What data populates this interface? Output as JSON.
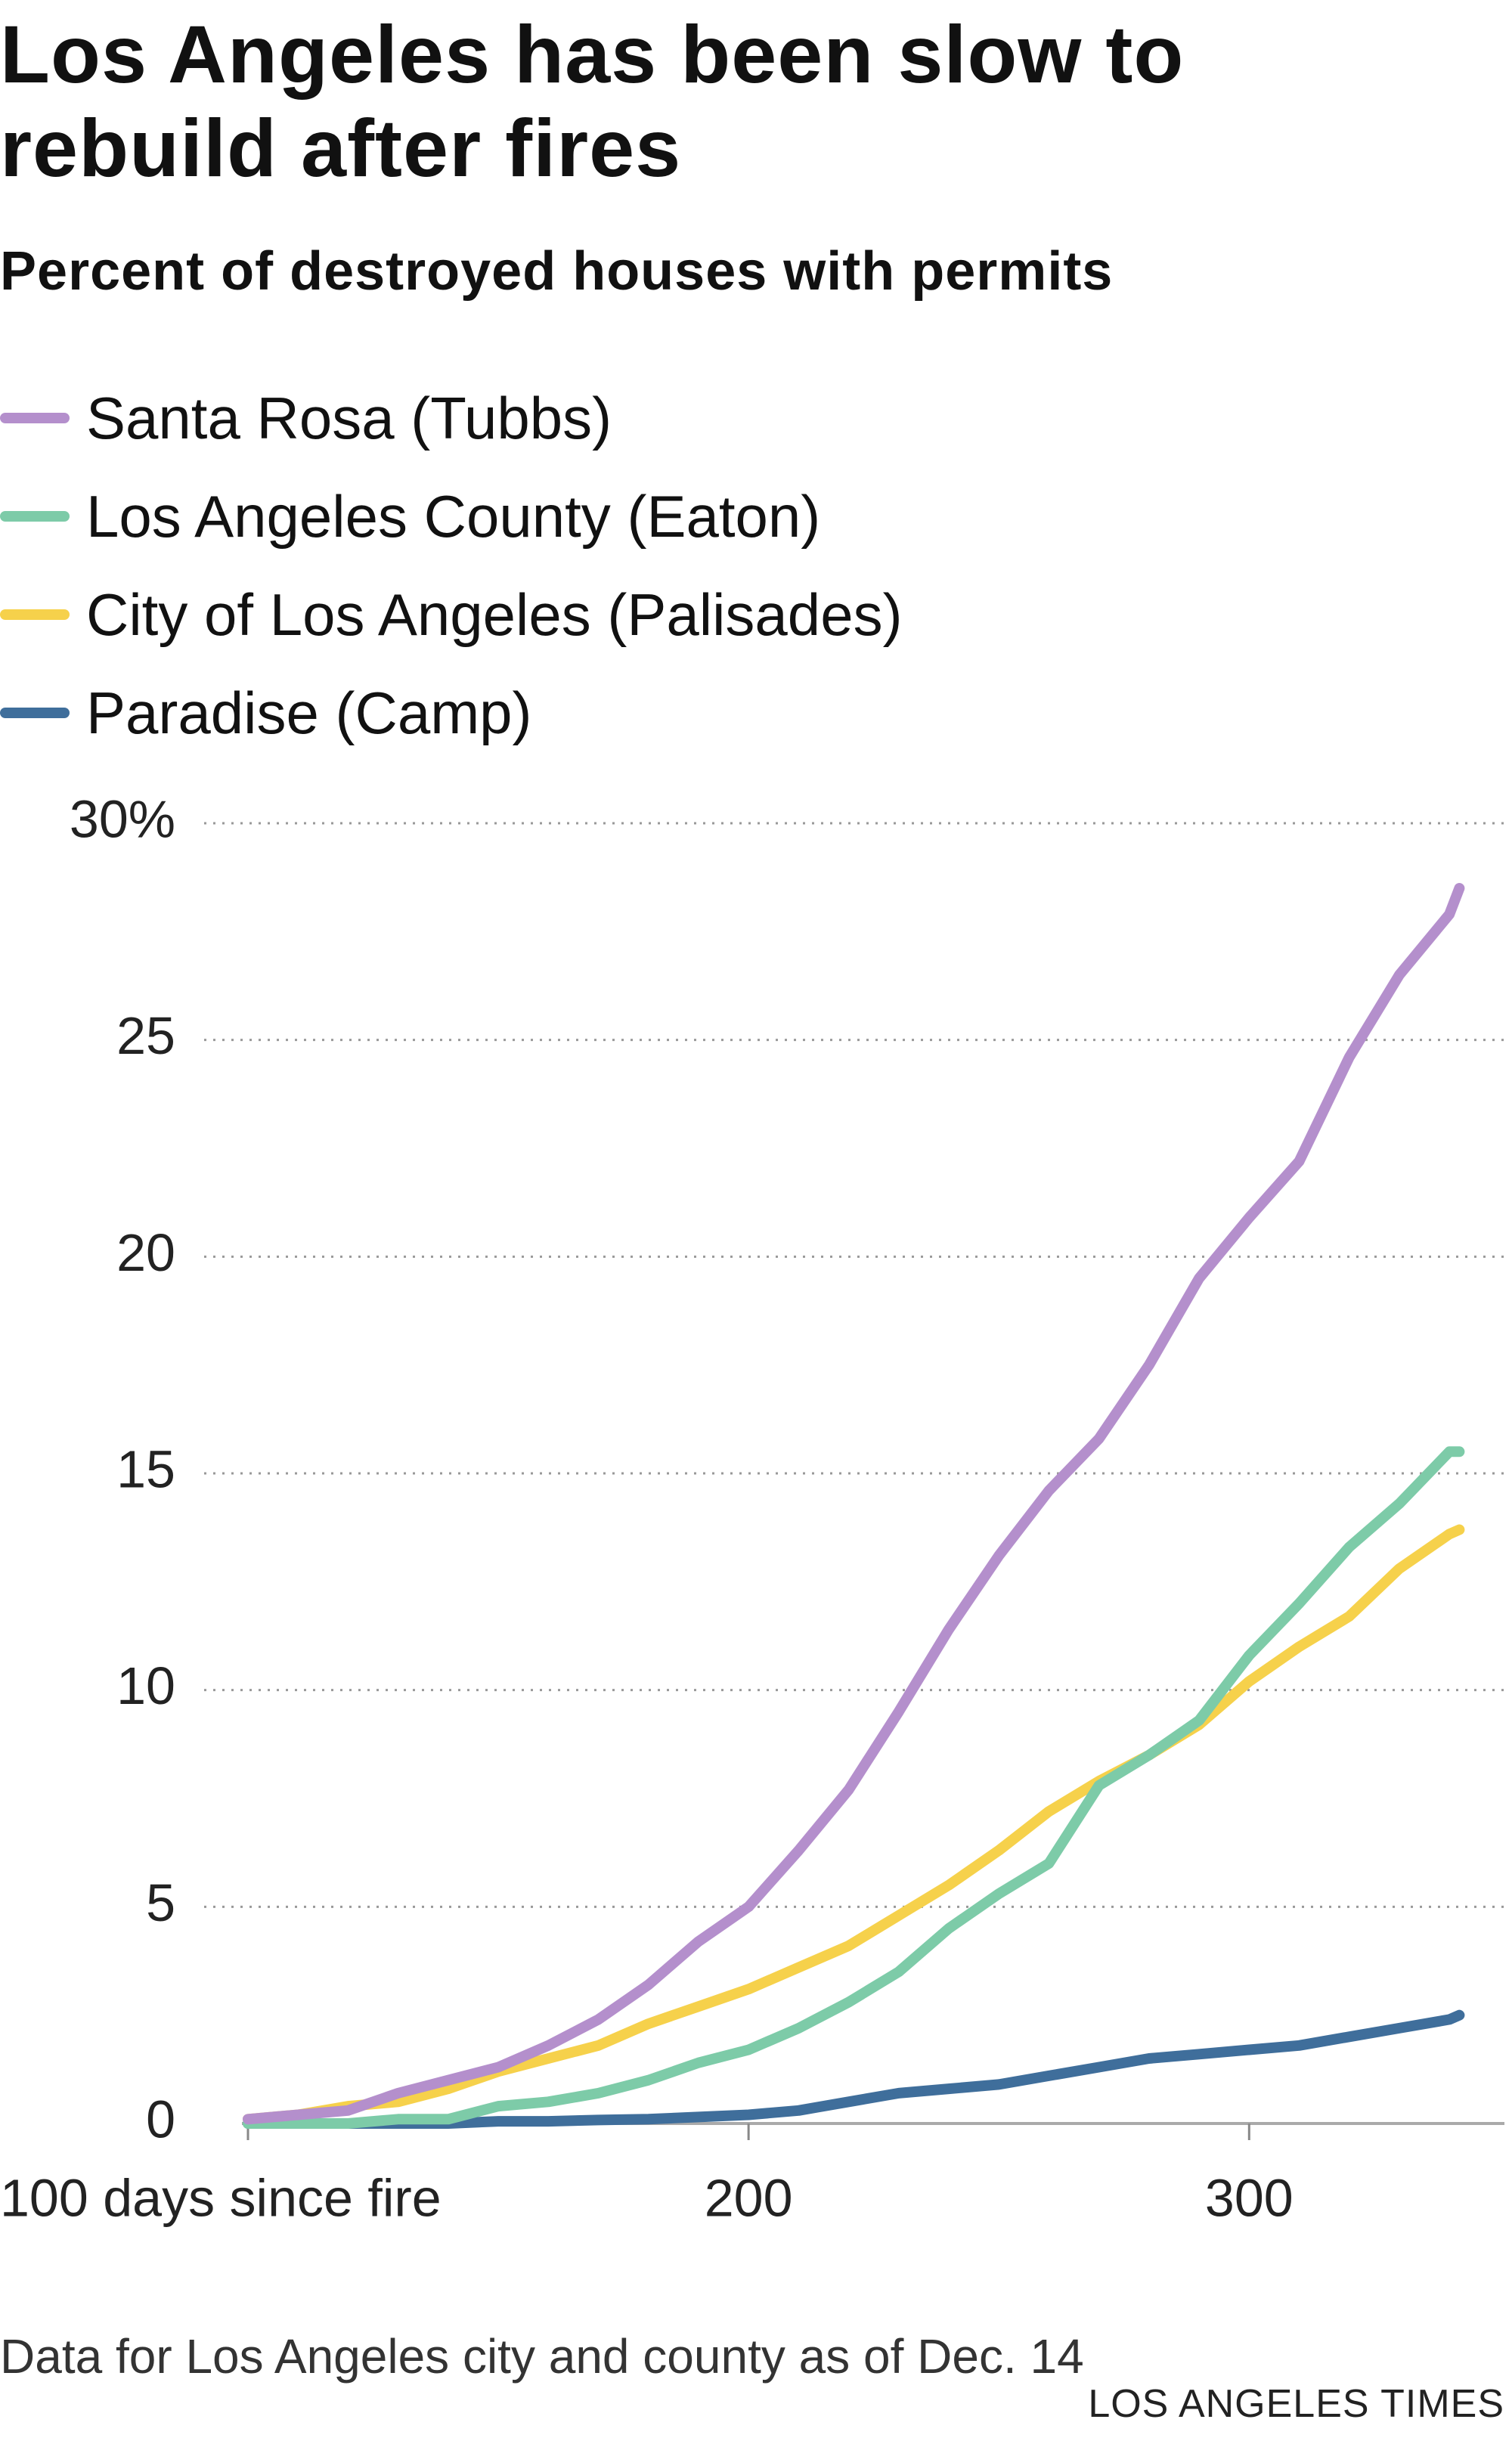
{
  "chart_data": {
    "type": "line",
    "title": "Los Angeles has been slow to rebuild after fires",
    "subtitle": "Percent of destroyed houses with permits",
    "x": [
      100,
      110,
      120,
      130,
      140,
      150,
      160,
      170,
      180,
      190,
      200,
      210,
      220,
      230,
      240,
      250,
      260,
      270,
      280,
      290,
      300,
      310,
      320,
      330,
      340,
      342
    ],
    "series": [
      {
        "name": "Santa Rosa (Tubbs)",
        "color": "#b48fcc",
        "values": [
          0.1,
          0.2,
          0.3,
          0.7,
          1.0,
          1.3,
          1.8,
          2.4,
          3.2,
          4.2,
          5.0,
          6.3,
          7.7,
          9.5,
          11.4,
          13.1,
          14.6,
          15.8,
          17.5,
          19.5,
          20.9,
          22.2,
          24.6,
          26.5,
          27.9,
          28.5
        ]
      },
      {
        "name": "Los Angeles County (Eaton)",
        "color": "#7dcba8",
        "values": [
          0,
          0,
          0,
          0.1,
          0.1,
          0.4,
          0.5,
          0.7,
          1.0,
          1.4,
          1.7,
          2.2,
          2.8,
          3.5,
          4.5,
          5.3,
          6.0,
          7.8,
          8.5,
          9.3,
          10.8,
          12.0,
          13.3,
          14.3,
          15.5,
          15.5
        ]
      },
      {
        "name": "City of Los Angeles (Palisades)",
        "color": "#f6d14b",
        "values": [
          0.1,
          0.2,
          0.4,
          0.5,
          0.8,
          1.2,
          1.5,
          1.8,
          2.3,
          2.7,
          3.1,
          3.6,
          4.1,
          4.8,
          5.5,
          6.3,
          7.2,
          7.9,
          8.5,
          9.2,
          10.2,
          11.0,
          11.7,
          12.8,
          13.6,
          13.7
        ]
      },
      {
        "name": "Paradise (Camp)",
        "color": "#3f6e9b",
        "values": [
          0,
          0,
          0,
          0,
          0,
          0.05,
          0.05,
          0.08,
          0.1,
          0.15,
          0.2,
          0.3,
          0.5,
          0.7,
          0.8,
          0.9,
          1.1,
          1.3,
          1.5,
          1.6,
          1.7,
          1.8,
          2.0,
          2.2,
          2.4,
          2.5
        ]
      }
    ],
    "xlim": [
      100,
      351
    ],
    "ylim": [
      0,
      30
    ],
    "xticks": [
      {
        "value": 100,
        "label": "100 days since fire"
      },
      200,
      300
    ],
    "yticks": [
      0,
      5,
      10,
      15,
      20,
      25,
      {
        "value": 30,
        "label": "30%"
      }
    ],
    "grid": true,
    "note": "Data for Los Angeles city and county as of Dec. 14",
    "source": "LOS ANGELES TIMES"
  }
}
